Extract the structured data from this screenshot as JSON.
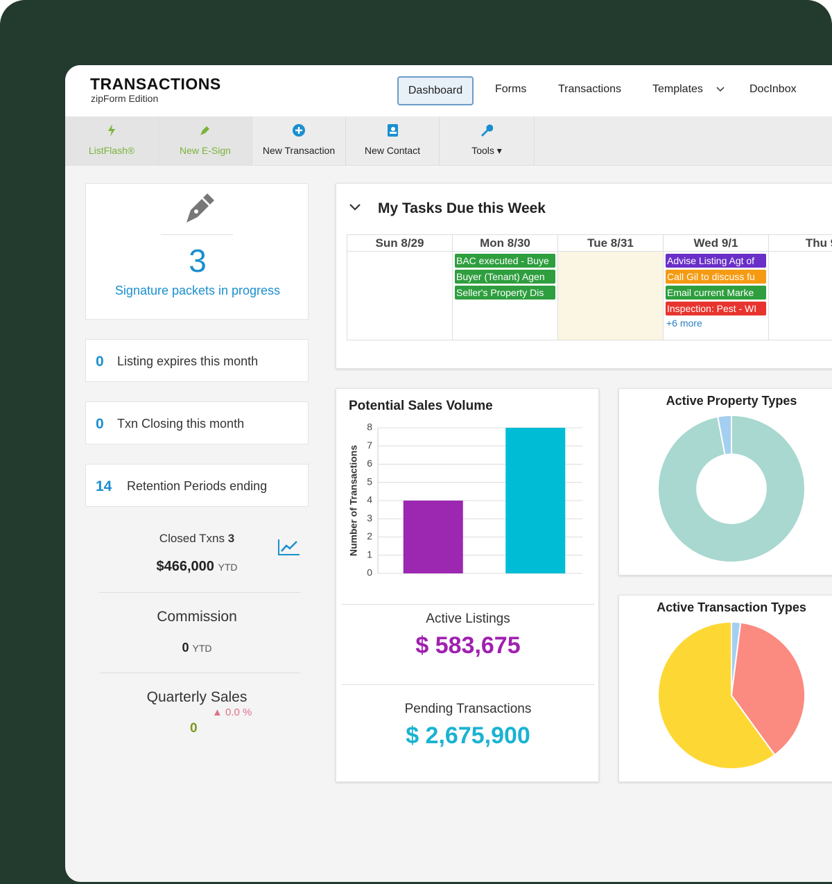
{
  "header": {
    "title": "TRANSACTIONS",
    "subtitle": "zipForm Edition"
  },
  "nav": [
    "Dashboard",
    "Forms",
    "Transactions",
    "Templates",
    "DocInbox"
  ],
  "toolbar": [
    "ListFlash®",
    "New E-Sign",
    "New Transaction",
    "New Contact",
    "Tools"
  ],
  "signature": {
    "count": "3",
    "label": "Signature packets in progress"
  },
  "stats": [
    {
      "value": "0",
      "label": "Listing expires this month"
    },
    {
      "value": "0",
      "label": "Txn Closing this month"
    },
    {
      "value": "14",
      "label": "Retention Periods ending"
    }
  ],
  "closed": {
    "label": "Closed Txns",
    "count": "3",
    "amount": "$466,000",
    "unit": "YTD"
  },
  "commission": {
    "label": "Commission",
    "value": "0",
    "unit": "YTD"
  },
  "quarterly": {
    "label": "Quarterly Sales",
    "change": "0.0 %",
    "value": "0"
  },
  "tasks": {
    "title": "My Tasks Due this Week",
    "days": [
      {
        "label": "Sun 8/29",
        "items": []
      },
      {
        "label": "Mon 8/30",
        "items": [
          {
            "text": "BAC executed - Buye",
            "color": "#2e9e3e"
          },
          {
            "text": "Buyer (Tenant) Agen",
            "color": "#2e9e3e"
          },
          {
            "text": "Seller's Property Dis",
            "color": "#2e9e3e"
          }
        ]
      },
      {
        "label": "Tue 8/31",
        "items": []
      },
      {
        "label": "Wed 9/1",
        "items": [
          {
            "text": "Advise Listing Agt of",
            "color": "#6a2fc8"
          },
          {
            "text": "Call Gil to discuss fu",
            "color": "#f59a12"
          },
          {
            "text": "Email current Marke",
            "color": "#2e9e3e"
          },
          {
            "text": "Inspection: Pest - WI",
            "color": "#e8342e"
          }
        ],
        "more": "+6 more"
      },
      {
        "label": "Thu 9",
        "items": []
      }
    ]
  },
  "summary": [
    {
      "label": "Active Listings",
      "value": "$ 583,675",
      "color": "#a020b0"
    },
    {
      "label": "Pending Transactions",
      "value": "$ 2,675,900",
      "color": "#1ab3d1"
    }
  ],
  "chart_data": [
    {
      "type": "bar",
      "title": "Potential Sales Volume",
      "y_label": "Number of Transactions",
      "categories": [
        null,
        null
      ],
      "values": [
        4,
        8
      ],
      "colors": [
        "#9c27b0",
        "#00bcd4"
      ],
      "ylim": [
        0,
        8
      ],
      "yticks": [
        0,
        1,
        2,
        3,
        4,
        5,
        6,
        7,
        8
      ],
      "grid": true
    },
    {
      "type": "donut",
      "title": "Active Property Types",
      "values": [
        97,
        3
      ],
      "colors": [
        "#a8d8cf",
        "#a4cff0"
      ]
    },
    {
      "type": "pie",
      "title": "Active Transaction Types",
      "values": [
        2,
        38,
        60
      ],
      "colors": [
        "#a4cff0",
        "#fb8a80",
        "#fdd835"
      ]
    }
  ]
}
